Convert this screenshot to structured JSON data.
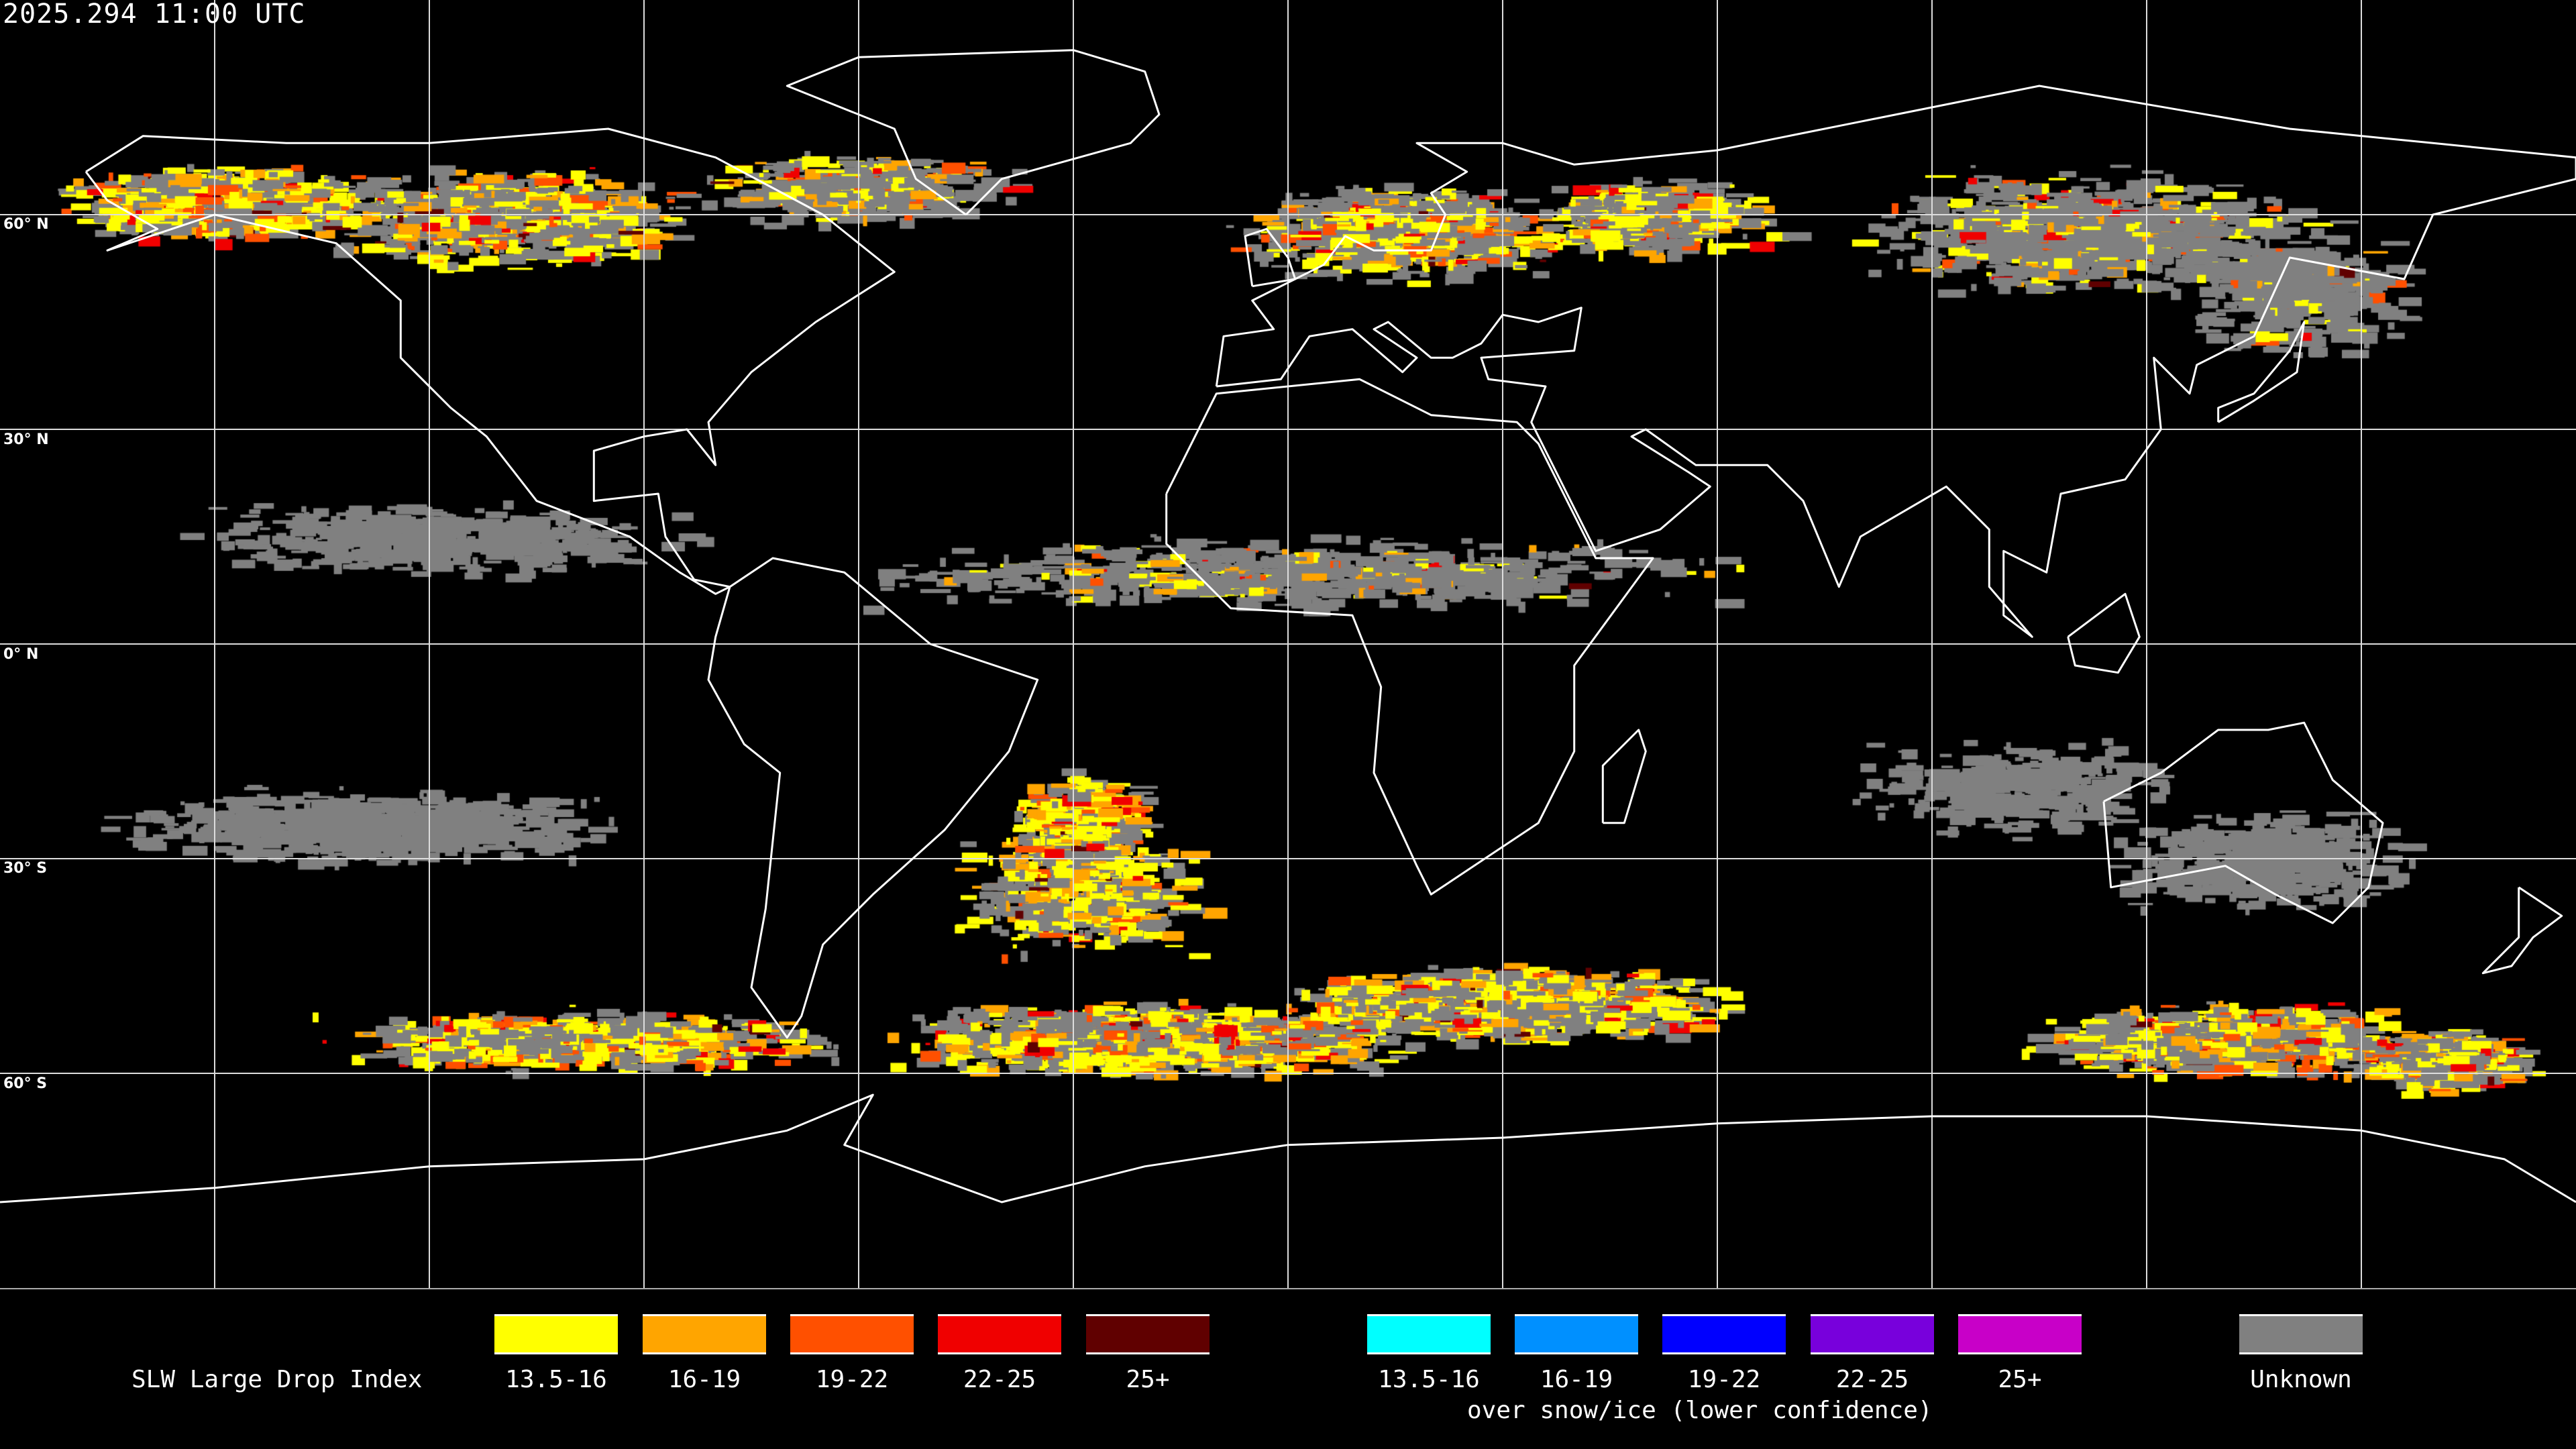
{
  "title": "2025.294 11:00 UTC",
  "lat_labels": [
    "60° N",
    "30° N",
    "0° N",
    "30° S",
    "60° S"
  ],
  "legend": {
    "title": "SLW Large Drop Index",
    "subtitle": "over snow/ice (lower confidence)",
    "primary": [
      {
        "label": "13.5-16",
        "color": "#ffff00"
      },
      {
        "label": "16-19",
        "color": "#ffa500"
      },
      {
        "label": "19-22",
        "color": "#ff5000"
      },
      {
        "label": "22-25",
        "color": "#f00000"
      },
      {
        "label": "25+",
        "color": "#600000"
      }
    ],
    "snow_ice": [
      {
        "label": "13.5-16",
        "color": "#00ffff"
      },
      {
        "label": "16-19",
        "color": "#0090ff"
      },
      {
        "label": "19-22",
        "color": "#0000ff"
      },
      {
        "label": "22-25",
        "color": "#7800dc"
      },
      {
        "label": "25+",
        "color": "#c800c8"
      }
    ],
    "unknown": {
      "label": "Unknown",
      "color": "#808080"
    }
  }
}
